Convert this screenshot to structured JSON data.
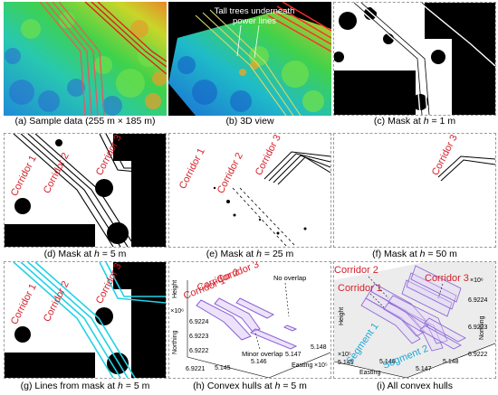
{
  "captions": {
    "a": "(a) Sample data (255 m × 185 m)",
    "b": "(b) 3D view",
    "c_pre": "(c) Mask at ",
    "c_h": "h",
    "c_post": " = 1 m",
    "d_pre": "(d) Mask at ",
    "d_h": "h",
    "d_post": " = 5 m",
    "e_pre": "(e) Mask at ",
    "e_h": "h",
    "e_post": " = 25 m",
    "f_pre": "(f) Mask at ",
    "f_h": "h",
    "f_post": " = 50 m",
    "g_pre": "(g) Lines from mask at ",
    "g_h": "h",
    "g_post": " = 5 m",
    "h_pre": "(h) Convex hulls at ",
    "h_h": "h",
    "h_post": " = 5 m",
    "i": "(i) All convex hulls"
  },
  "annotations": {
    "tall_trees_line1": "Tall trees underneath",
    "tall_trees_line2": "power lines",
    "no_overlap": "No overlap",
    "minor_overlap": "Minor overlap"
  },
  "corridor_labels": {
    "c1": "Corridor 1",
    "c2": "Corridor 2",
    "c3": "Corridor 3"
  },
  "segment_labels": {
    "s1": "Segment 1",
    "s2": "Segment 2"
  },
  "plot_h": {
    "ylabel": "Height",
    "northing_label": "Northing",
    "easting_label": "Easting",
    "northing_ticks": [
      "6.9224",
      "6.9223",
      "6.9222",
      "6.9221"
    ],
    "northing_exp": "×10⁶",
    "easting_ticks": [
      "5.145",
      "5.146",
      "5.147",
      "5.148"
    ],
    "easting_exp": "×10⁵"
  },
  "plot_i": {
    "ylabel": "Height",
    "northing_label": "Northing",
    "easting_label": "Easting",
    "northing_ticks": [
      "6.9224",
      "6.9223",
      "6.9222"
    ],
    "northing_exp": "×10⁶",
    "easting_ticks": [
      "5.145",
      "5.146",
      "5.147",
      "5.148"
    ],
    "easting_exp": "×10⁵"
  },
  "colors": {
    "corridor_red": "#d6202a",
    "segment_cyan": "#1aa6d6",
    "hull_purple": "#8b5fd6"
  }
}
